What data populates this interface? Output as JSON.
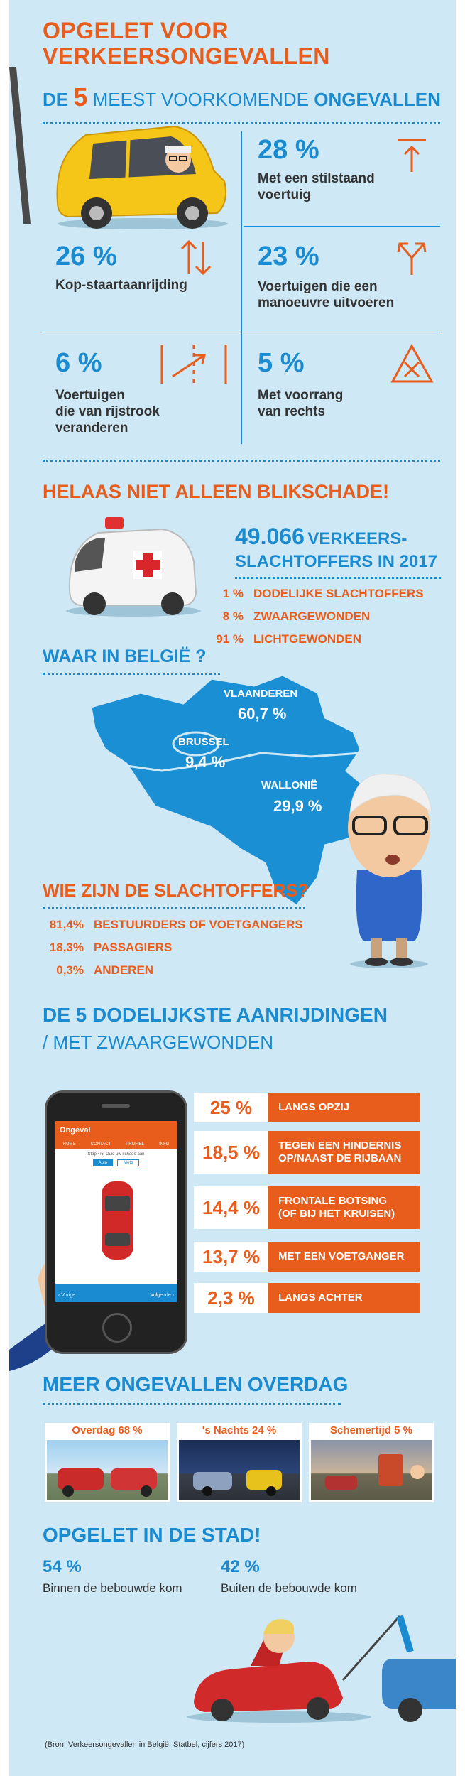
{
  "header": {
    "title_line1": "OPGELET VOOR",
    "title_line2": "VERKEERSONGEVALLEN",
    "subtitle_prefix": "DE",
    "subtitle_number": "5",
    "subtitle_mid": "MEEST VOORKOMENDE",
    "subtitle_end": "ONGEVALLEN"
  },
  "common_accidents": [
    {
      "value": "28 %",
      "label_line1": "Met een stilstaand",
      "label_line2": "voertuig",
      "label_line3": "",
      "icon": "arrow-to-line-icon"
    },
    {
      "value": "26 %",
      "label_line1": "Kop-staartaanrijding",
      "label_line2": "",
      "label_line3": "",
      "icon": "up-down-arrows-icon"
    },
    {
      "value": "23 %",
      "label_line1": "Voertuigen die een",
      "label_line2": "manoeuvre uitvoeren",
      "label_line3": "",
      "icon": "fork-arrows-icon"
    },
    {
      "value": "6 %",
      "label_line1": "Voertuigen",
      "label_line2": "die van rijstrook",
      "label_line3": "veranderen",
      "icon": "lane-change-icon"
    },
    {
      "value": "5 %",
      "label_line1": "Met voorrang",
      "label_line2": "van rechts",
      "label_line3": "",
      "icon": "priority-right-icon"
    }
  ],
  "victims_section": {
    "heading": "HELAAS NIET ALLEEN BLIKSCHADE!",
    "total_number": "49.066",
    "total_line1": "VERKEERS-",
    "total_line2": "SLACHTOFFERS IN 2017",
    "breakdown": [
      {
        "value": "1 %",
        "label": "DODELIJKE SLACHTOFFERS"
      },
      {
        "value": "8 %",
        "label": "ZWAARGEWONDEN"
      },
      {
        "value": "91 %",
        "label": "LICHTGEWONDEN"
      }
    ]
  },
  "regions_section": {
    "heading": "WAAR IN BELGIË ?",
    "regions": [
      {
        "name": "VLAANDEREN",
        "value": "60,7 %"
      },
      {
        "name": "BRUSSEL",
        "value": "9,4 %"
      },
      {
        "name": "WALLONIË",
        "value": "29,9 %"
      }
    ]
  },
  "who_section": {
    "heading": "WIE ZIJN DE SLACHTOFFERS?",
    "items": [
      {
        "value": "81,4%",
        "label": "BESTUURDERS OF VOETGANGERS"
      },
      {
        "value": "18,3%",
        "label": "PASSAGIERS"
      },
      {
        "value": "0,3%",
        "label": "ANDEREN"
      }
    ]
  },
  "deadliest_section": {
    "heading_line1": "DE 5 DODELIJKSTE AANRIJDINGEN",
    "heading_line2": "/ MET ZWAARGEWONDEN",
    "items": [
      {
        "value": "25 %",
        "label_line1": "LANGS OPZIJ",
        "label_line2": ""
      },
      {
        "value": "18,5 %",
        "label_line1": "TEGEN EEN HINDERNIS",
        "label_line2": "OP/NAAST DE RIJBAAN"
      },
      {
        "value": "14,4 %",
        "label_line1": "FRONTALE BOTSING",
        "label_line2": "(OF BIJ HET KRUISEN)"
      },
      {
        "value": "13,7 %",
        "label_line1": "MET EEN VOETGANGER",
        "label_line2": ""
      },
      {
        "value": "2,3 %",
        "label_line1": "LANGS ACHTER",
        "label_line2": ""
      }
    ],
    "phone": {
      "app_title": "Ongeval",
      "tabs": [
        "HOME",
        "CONTACT",
        "PROFIEL",
        "INFO"
      ],
      "step_text": "Stap 4/6: Duid uw schade aan",
      "options": [
        "Auto",
        "Moto"
      ],
      "footer_left": "Vorige",
      "footer_right": "Volgende"
    }
  },
  "daytime_section": {
    "heading": "MEER ONGEVALLEN OVERDAG",
    "photos": [
      {
        "caption": "Overdag 68 %"
      },
      {
        "caption": "'s Nachts 24 %"
      },
      {
        "caption": "Schemertijd 5 %"
      }
    ]
  },
  "city_section": {
    "heading": "OPGELET IN DE STAD!",
    "items": [
      {
        "value": "54 %",
        "label": "Binnen de bebouwde kom"
      },
      {
        "value": "42 %",
        "label": "Buiten de bebouwde kom"
      }
    ]
  },
  "source": "(Bron: Verkeersongevallen in België, Statbel, cijfers 2017)",
  "colors": {
    "background": "#cfe8f5",
    "accent_orange": "#e85d1c",
    "accent_blue": "#1a8bd0"
  }
}
